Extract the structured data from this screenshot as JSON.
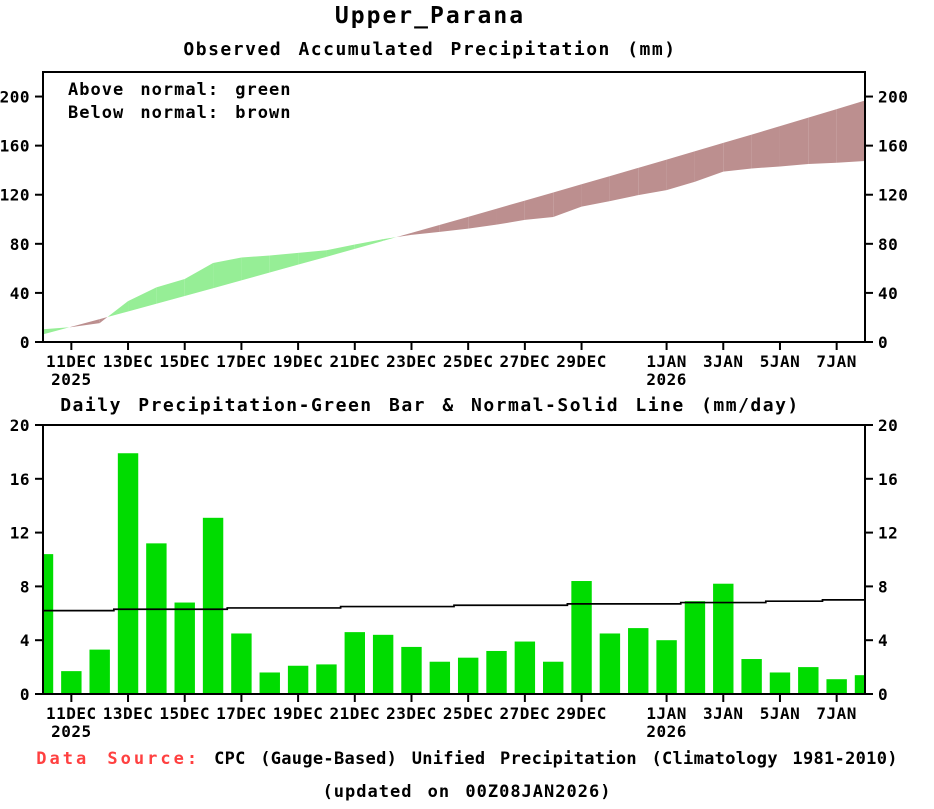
{
  "figure": {
    "title": "Upper_Parana",
    "footer": {
      "source_label": "Data Source:",
      "source_text": "CPC (Gauge-Based) Unified Precipitation (Climatology 1981-2010)",
      "updated_text": "(updated on 00Z08JAN2026)"
    },
    "colors": {
      "bar_green": "#00DC00",
      "band_green": "#96EE96",
      "band_brown": "#BC8F8F",
      "axis_black": "#000000",
      "source_red": "#FF4040"
    }
  },
  "chart_data": [
    {
      "type": "area",
      "title": "Observed Accumulated Precipitation (mm)",
      "legend": [
        "Above normal: green",
        "Below normal: brown"
      ],
      "legend_position": "top-left",
      "grid": false,
      "xlabel": "",
      "ylabel": "",
      "ylim": [
        0,
        220
      ],
      "yticks": [
        0,
        40,
        80,
        120,
        160,
        200
      ],
      "xticks": [
        {
          "day": 1,
          "label": "11DEC",
          "year": "2025"
        },
        {
          "day": 3,
          "label": "13DEC"
        },
        {
          "day": 5,
          "label": "15DEC"
        },
        {
          "day": 7,
          "label": "17DEC"
        },
        {
          "day": 9,
          "label": "19DEC"
        },
        {
          "day": 11,
          "label": "21DEC"
        },
        {
          "day": 13,
          "label": "23DEC"
        },
        {
          "day": 15,
          "label": "25DEC"
        },
        {
          "day": 17,
          "label": "27DEC"
        },
        {
          "day": 19,
          "label": "29DEC"
        },
        {
          "day": 22,
          "label": "1JAN",
          "year": "2026"
        },
        {
          "day": 24,
          "label": "3JAN"
        },
        {
          "day": 26,
          "label": "5JAN"
        },
        {
          "day": 28,
          "label": "7JAN"
        }
      ],
      "dates": [
        "10DEC2025",
        "11DEC2025",
        "12DEC2025",
        "13DEC2025",
        "14DEC2025",
        "15DEC2025",
        "16DEC2025",
        "17DEC2025",
        "18DEC2025",
        "19DEC2025",
        "20DEC2025",
        "21DEC2025",
        "22DEC2025",
        "23DEC2025",
        "24DEC2025",
        "25DEC2025",
        "26DEC2025",
        "27DEC2025",
        "28DEC2025",
        "29DEC2025",
        "30DEC2025",
        "31DEC2025",
        "01JAN2026",
        "02JAN2026",
        "03JAN2026",
        "04JAN2026",
        "05JAN2026",
        "06JAN2026",
        "07JAN2026",
        "08JAN2026"
      ],
      "series": [
        {
          "name": "observed_accumulated",
          "values": [
            10.4,
            12.1,
            15.4,
            33.3,
            44.5,
            51.3,
            64.4,
            68.9,
            70.5,
            72.6,
            74.8,
            79.4,
            83.8,
            87.3,
            89.7,
            92.4,
            95.6,
            99.5,
            101.9,
            110.3,
            114.8,
            119.7,
            123.7,
            130.6,
            138.8,
            141.4,
            143.0,
            145.0,
            146.1,
            147.5
          ]
        },
        {
          "name": "normal_accumulated",
          "values": [
            6.2,
            12.4,
            18.6,
            24.9,
            31.2,
            37.5,
            43.8,
            50.2,
            56.6,
            63.0,
            69.4,
            75.9,
            82.4,
            88.9,
            95.4,
            102.0,
            108.6,
            115.2,
            121.8,
            128.5,
            135.2,
            141.9,
            148.6,
            155.4,
            162.2,
            169.0,
            175.9,
            182.8,
            189.8,
            196.8
          ]
        }
      ],
      "fill_rule": "green where observed above normal, brown where observed below normal"
    },
    {
      "type": "bar",
      "title": "Daily Precipitation-Green Bar & Normal-Solid Line (mm/day)",
      "grid": false,
      "xlabel": "",
      "ylabel": "",
      "ylim": [
        0,
        20
      ],
      "yticks": [
        0,
        4,
        8,
        12,
        16,
        20
      ],
      "xticks": [
        {
          "day": 1,
          "label": "11DEC",
          "year": "2025"
        },
        {
          "day": 3,
          "label": "13DEC"
        },
        {
          "day": 5,
          "label": "15DEC"
        },
        {
          "day": 7,
          "label": "17DEC"
        },
        {
          "day": 9,
          "label": "19DEC"
        },
        {
          "day": 11,
          "label": "21DEC"
        },
        {
          "day": 13,
          "label": "23DEC"
        },
        {
          "day": 15,
          "label": "25DEC"
        },
        {
          "day": 17,
          "label": "27DEC"
        },
        {
          "day": 19,
          "label": "29DEC"
        },
        {
          "day": 22,
          "label": "1JAN",
          "year": "2026"
        },
        {
          "day": 24,
          "label": "3JAN"
        },
        {
          "day": 26,
          "label": "5JAN"
        },
        {
          "day": 28,
          "label": "7JAN"
        }
      ],
      "dates": [
        "10DEC2025",
        "11DEC2025",
        "12DEC2025",
        "13DEC2025",
        "14DEC2025",
        "15DEC2025",
        "16DEC2025",
        "17DEC2025",
        "18DEC2025",
        "19DEC2025",
        "20DEC2025",
        "21DEC2025",
        "22DEC2025",
        "23DEC2025",
        "24DEC2025",
        "25DEC2025",
        "26DEC2025",
        "27DEC2025",
        "28DEC2025",
        "29DEC2025",
        "30DEC2025",
        "31DEC2025",
        "01JAN2026",
        "02JAN2026",
        "03JAN2026",
        "04JAN2026",
        "05JAN2026",
        "06JAN2026",
        "07JAN2026",
        "08JAN2026"
      ],
      "series": [
        {
          "name": "daily_precipitation_bars",
          "values": [
            10.4,
            1.7,
            3.3,
            17.9,
            11.2,
            6.8,
            13.1,
            4.5,
            1.6,
            2.1,
            2.2,
            4.6,
            4.4,
            3.5,
            2.4,
            2.7,
            3.2,
            3.9,
            2.4,
            8.4,
            4.5,
            4.9,
            4.0,
            6.9,
            8.2,
            2.6,
            1.6,
            2.0,
            1.1,
            1.4
          ]
        },
        {
          "name": "daily_normal_line",
          "values": [
            6.2,
            6.2,
            6.2,
            6.3,
            6.3,
            6.3,
            6.3,
            6.4,
            6.4,
            6.4,
            6.4,
            6.5,
            6.5,
            6.5,
            6.5,
            6.6,
            6.6,
            6.6,
            6.6,
            6.7,
            6.7,
            6.7,
            6.7,
            6.8,
            6.8,
            6.8,
            6.9,
            6.9,
            7.0,
            7.0
          ]
        }
      ]
    }
  ]
}
